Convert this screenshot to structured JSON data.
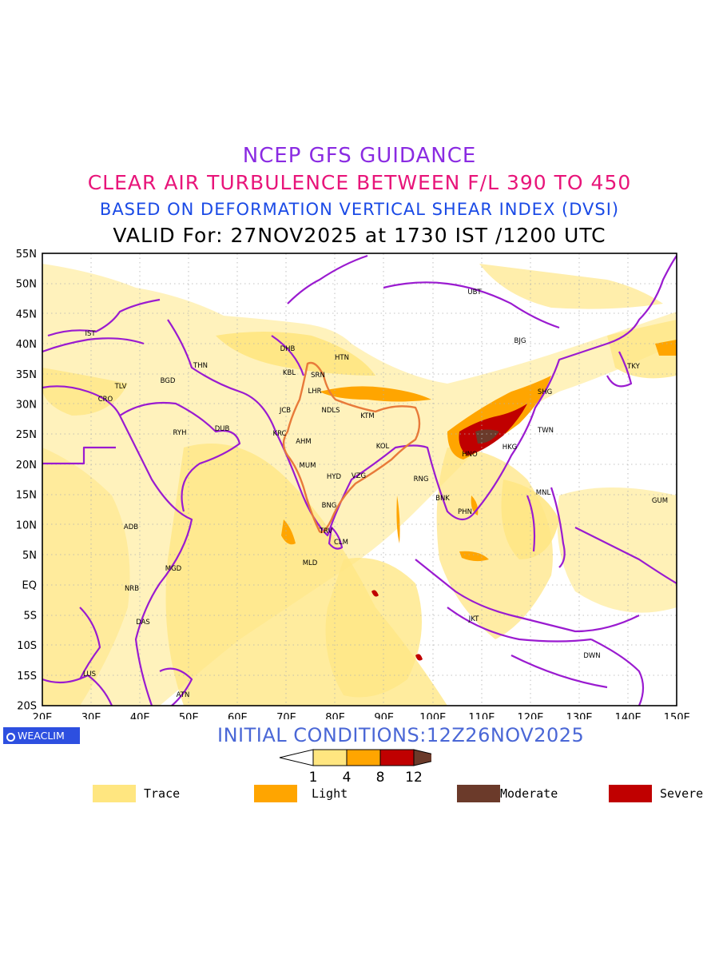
{
  "titles": {
    "line1": "NCEP GFS GUIDANCE",
    "line2": "CLEAR AIR TURBULENCE BETWEEN F/L 390 TO 450",
    "line3": "BASED ON DEFORMATION VERTICAL SHEAR INDEX (DVSI)",
    "line4": "VALID For: 27NOV2025 at 1730 IST /1200 UTC"
  },
  "map": {
    "lat_labels": [
      "55N",
      "50N",
      "45N",
      "40N",
      "35N",
      "30N",
      "25N",
      "20N",
      "15N",
      "10N",
      "5N",
      "EQ",
      "5S",
      "10S",
      "15S",
      "20S"
    ],
    "lon_labels": [
      "20E",
      "30E",
      "40E",
      "50E",
      "60E",
      "70E",
      "80E",
      "90E",
      "100E",
      "110E",
      "120E",
      "130E",
      "140E",
      "150E"
    ],
    "cities": [
      {
        "code": "UBT"
      },
      {
        "code": "BJG"
      },
      {
        "code": "IST"
      },
      {
        "code": "DHB"
      },
      {
        "code": "HTN"
      },
      {
        "code": "TKY"
      },
      {
        "code": "THN"
      },
      {
        "code": "KBL"
      },
      {
        "code": "SRN"
      },
      {
        "code": "BGD"
      },
      {
        "code": "TLV"
      },
      {
        "code": "LHR"
      },
      {
        "code": "CRO"
      },
      {
        "code": "SHG"
      },
      {
        "code": "JCB"
      },
      {
        "code": "NDLS"
      },
      {
        "code": "KTM"
      },
      {
        "code": "RYH"
      },
      {
        "code": "DUB"
      },
      {
        "code": "KRC"
      },
      {
        "code": "TWN"
      },
      {
        "code": "AHM"
      },
      {
        "code": "KOL"
      },
      {
        "code": "HKG"
      },
      {
        "code": "HNO"
      },
      {
        "code": "MUM"
      },
      {
        "code": "HYD"
      },
      {
        "code": "VZG"
      },
      {
        "code": "RNG"
      },
      {
        "code": "MNL"
      },
      {
        "code": "BNK"
      },
      {
        "code": "GUM"
      },
      {
        "code": "BNG"
      },
      {
        "code": "PHN"
      },
      {
        "code": "ADB"
      },
      {
        "code": "TRV"
      },
      {
        "code": "CLM"
      },
      {
        "code": "MLD"
      },
      {
        "code": "MGD"
      },
      {
        "code": "NRB"
      },
      {
        "code": "JKT"
      },
      {
        "code": "DAS"
      },
      {
        "code": "DWN"
      },
      {
        "code": "LUS"
      },
      {
        "code": "ATN"
      }
    ]
  },
  "branding": {
    "logo_text": "WEACLIM"
  },
  "initial_conditions": "INITIAL CONDITIONS:12Z26NOV2025",
  "colorbar": {
    "ticks": [
      "1",
      "4",
      "8",
      "12"
    ],
    "colors": {
      "trace": "#ffe680",
      "light": "#ffa500",
      "severe": "#c00000",
      "moderate": "#6b3a2a"
    }
  },
  "legend": [
    {
      "label": "Trace",
      "color": "#ffe680"
    },
    {
      "label": "Light",
      "color": "#ffa500"
    },
    {
      "label": "Moderate",
      "color": "#6b3a2a"
    },
    {
      "label": "Severe",
      "color": "#c00000"
    }
  ],
  "colors": {
    "coastline": "#9a1bd0",
    "india_boundary": "#e87a3a",
    "grid": "#b0b0b0"
  }
}
